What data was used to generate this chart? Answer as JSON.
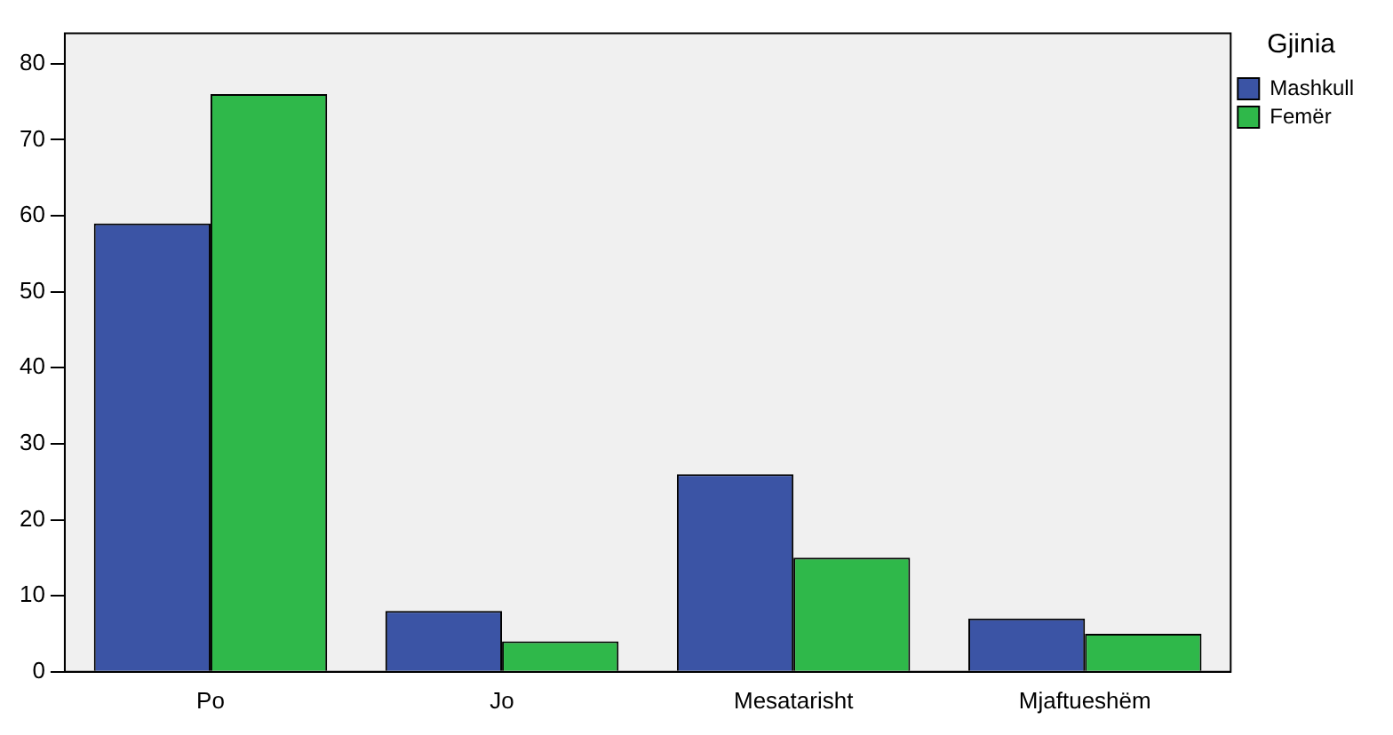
{
  "chart_data": {
    "type": "bar",
    "legend_title": "Gjinia",
    "legend": "top right",
    "categories": [
      "Po",
      "Jo",
      "Mesatarisht",
      "Mjaftueshëm"
    ],
    "series": [
      {
        "name": "Mashkull",
        "color": "#3b54a5",
        "values": [
          59,
          8,
          26,
          7
        ]
      },
      {
        "name": "Femër",
        "color": "#2fb84a",
        "values": [
          76,
          4,
          15,
          5
        ]
      }
    ],
    "ylim": [
      0,
      84
    ],
    "yticks": [
      0,
      10,
      20,
      30,
      40,
      50,
      60,
      70,
      80
    ],
    "grid": false
  }
}
